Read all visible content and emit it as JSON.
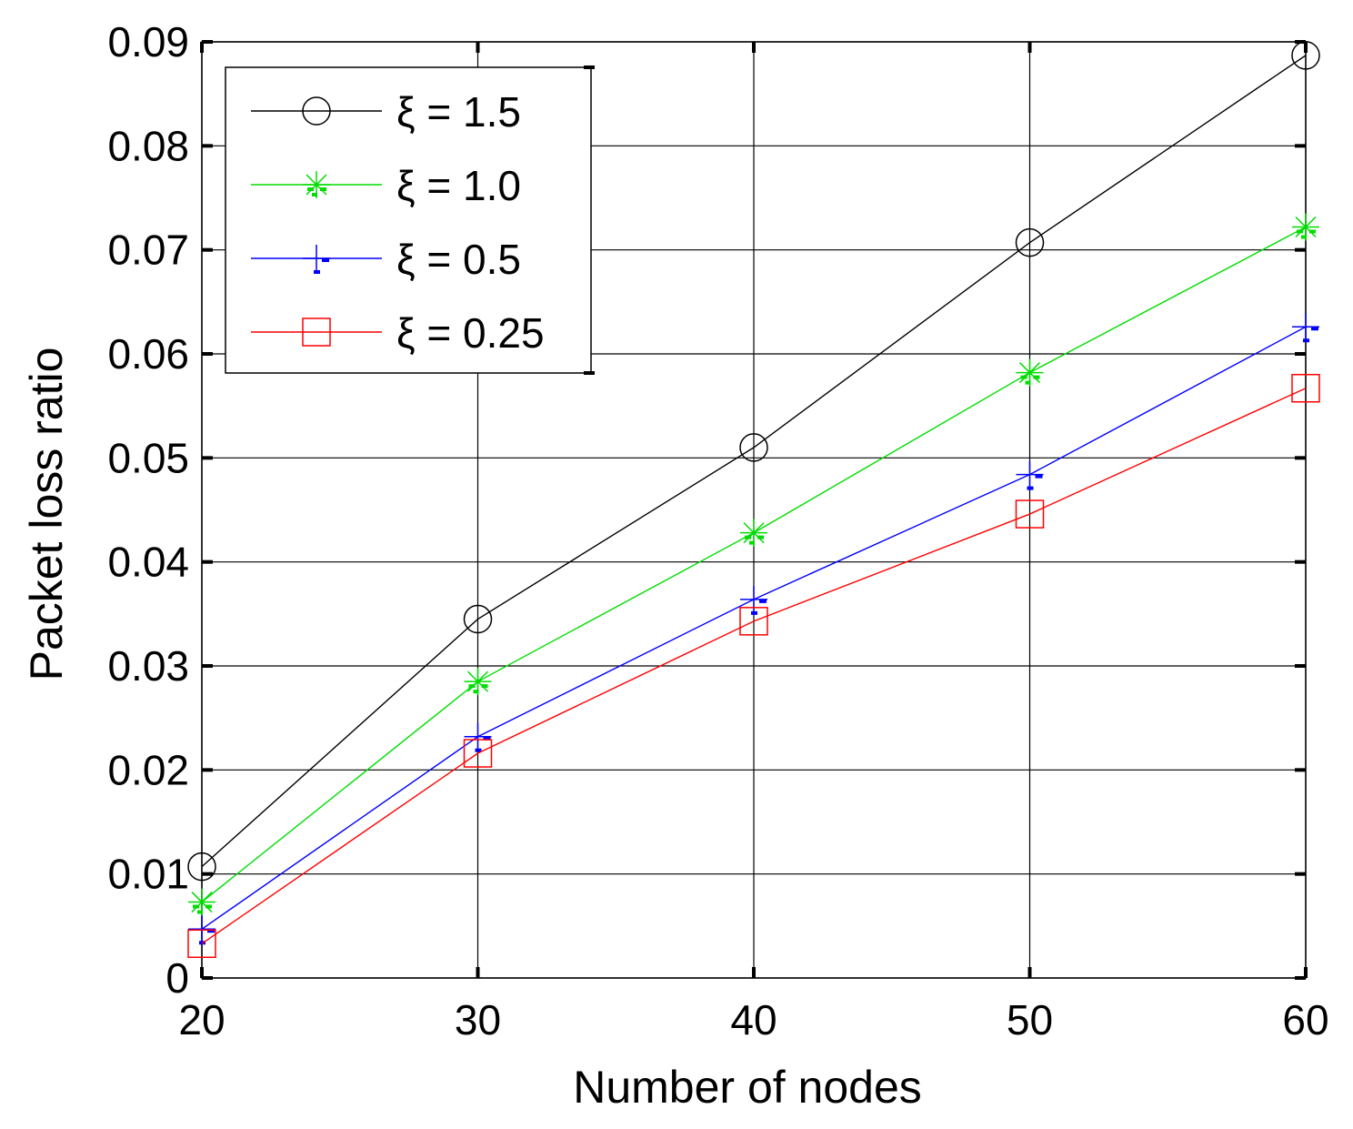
{
  "chart_data": {
    "type": "line",
    "xlabel": "Number of nodes",
    "ylabel": "Packet loss ratio",
    "xlim": [
      20,
      60
    ],
    "ylim": [
      0,
      0.09
    ],
    "x_ticks": [
      "20",
      "30",
      "40",
      "50",
      "60"
    ],
    "y_ticks": [
      "0",
      "0.01",
      "0.02",
      "0.03",
      "0.04",
      "0.05",
      "0.06",
      "0.07",
      "0.08",
      "0.09"
    ],
    "grid": true,
    "legend_position": "top-left",
    "x": [
      20,
      30,
      40,
      50,
      60
    ],
    "series": [
      {
        "name": "ξ = 1.5",
        "color": "#000000",
        "marker": "circle",
        "values": [
          0.0107,
          0.0345,
          0.051,
          0.0707,
          0.0887
        ]
      },
      {
        "name": "ξ = 1.0",
        "color": "#00dd00",
        "marker": "star",
        "values": [
          0.0073,
          0.0285,
          0.0428,
          0.0582,
          0.0722
        ]
      },
      {
        "name": "ξ = 0.5",
        "color": "#0000ff",
        "marker": "plus",
        "values": [
          0.0047,
          0.0232,
          0.0364,
          0.0484,
          0.0626
        ]
      },
      {
        "name": "ξ = 0.25",
        "color": "#ff0000",
        "marker": "square",
        "values": [
          0.0033,
          0.0216,
          0.0343,
          0.0446,
          0.0567
        ]
      }
    ]
  }
}
